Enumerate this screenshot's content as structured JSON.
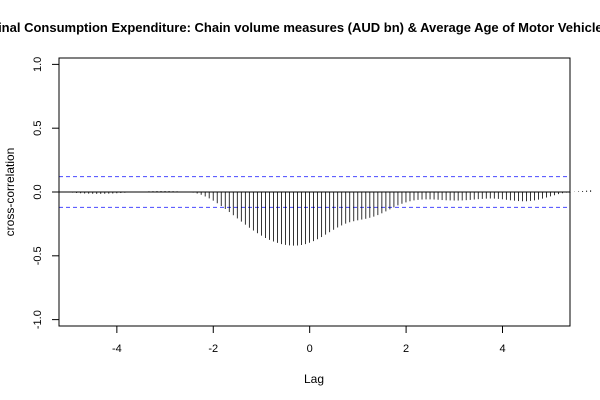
{
  "chart_data": {
    "type": "bar",
    "title": "Final Consumption Expenditure: Chain volume measures (AUD bn) & Average Age of Motor Vehicles",
    "xlabel": "Lag",
    "ylabel": "cross-correlation",
    "xlim": [
      -5.2,
      5.4
    ],
    "ylim": [
      -1.05,
      1.05
    ],
    "x_ticks": [
      -4,
      -2,
      0,
      2,
      4
    ],
    "x_tick_labels": [
      "-4",
      "-2",
      "0",
      "2",
      "4"
    ],
    "y_ticks": [
      -1.0,
      -0.5,
      0.0,
      0.5,
      1.0
    ],
    "y_tick_labels": [
      "-1.0",
      "-0.5",
      "0.0",
      "0.5",
      "1.0"
    ],
    "confidence_bounds": [
      0.12,
      -0.12
    ],
    "confidence_color": "#4a4aff",
    "lag_step": 0.0833,
    "series": [
      {
        "x_start": -5.0,
        "values": [
          0.0,
          -0.005,
          -0.008,
          -0.01,
          -0.012,
          -0.013,
          -0.014,
          -0.015,
          -0.015,
          -0.014,
          -0.013,
          -0.012,
          -0.01,
          -0.008,
          -0.006,
          -0.004,
          -0.002,
          0.0,
          0.002,
          0.004,
          0.006,
          0.007,
          0.008,
          0.008,
          0.008,
          0.008,
          0.007,
          0.006,
          0.004,
          0.002,
          0.0,
          -0.005,
          -0.012,
          -0.022,
          -0.035,
          -0.05,
          -0.068,
          -0.088,
          -0.11,
          -0.133,
          -0.157,
          -0.182,
          -0.207,
          -0.232,
          -0.256,
          -0.28,
          -0.302,
          -0.323,
          -0.342,
          -0.36,
          -0.375,
          -0.388,
          -0.399,
          -0.408,
          -0.414,
          -0.418,
          -0.42,
          -0.419,
          -0.415,
          -0.408,
          -0.398,
          -0.385,
          -0.37,
          -0.353,
          -0.334,
          -0.315,
          -0.296,
          -0.278,
          -0.262,
          -0.248,
          -0.237,
          -0.229,
          -0.222,
          -0.216,
          -0.21,
          -0.202,
          -0.193,
          -0.181,
          -0.167,
          -0.152,
          -0.136,
          -0.12,
          -0.105,
          -0.092,
          -0.081,
          -0.072,
          -0.066,
          -0.062,
          -0.059,
          -0.058,
          -0.058,
          -0.059,
          -0.061,
          -0.063,
          -0.065,
          -0.066,
          -0.067,
          -0.067,
          -0.066,
          -0.064,
          -0.062,
          -0.059,
          -0.056,
          -0.054,
          -0.052,
          -0.051,
          -0.052,
          -0.054,
          -0.057,
          -0.061,
          -0.065,
          -0.068,
          -0.071,
          -0.072,
          -0.072,
          -0.07,
          -0.066,
          -0.06,
          -0.052,
          -0.043,
          -0.034,
          -0.025,
          -0.017,
          -0.01,
          -0.005,
          -0.001,
          0.002,
          0.005,
          0.008,
          0.011,
          0.014
        ]
      }
    ]
  }
}
